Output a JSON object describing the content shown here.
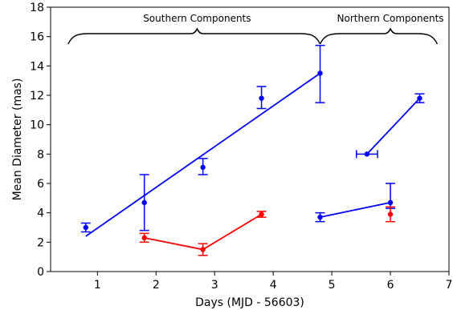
{
  "chart_data": {
    "type": "scatter",
    "xlabel": "Days (MJD - 56603)",
    "ylabel": "Mean Diameter (mas)",
    "xlim": [
      0.2,
      7.0
    ],
    "ylim": [
      0,
      18
    ],
    "xticks": [
      1,
      2,
      3,
      4,
      5,
      6,
      7
    ],
    "yticks": [
      0,
      2,
      4,
      6,
      8,
      10,
      12,
      14,
      16,
      18
    ],
    "grid": false,
    "colors": {
      "blue": "#0000ff",
      "red": "#ff0000",
      "annotation": "#000000"
    },
    "annotations": [
      {
        "label": "Southern Components",
        "x_start": 0.5,
        "x_end": 4.8,
        "peak_x": 2.7,
        "y": 16.2
      },
      {
        "label": "Northern Components",
        "x_start": 4.8,
        "x_end": 6.8,
        "peak_x": 6.0,
        "y": 16.2
      }
    ],
    "series": [
      {
        "color": "#0000ff",
        "points": [
          {
            "x": 0.8,
            "y": 3.0,
            "yerr": [
              0.3,
              0.3
            ]
          },
          {
            "x": 1.8,
            "y": 4.7,
            "yerr": [
              1.9,
              1.9
            ]
          },
          {
            "x": 2.8,
            "y": 7.1,
            "yerr": [
              0.5,
              0.6
            ]
          },
          {
            "x": 3.8,
            "y": 11.8,
            "yerr": [
              0.7,
              0.8
            ]
          },
          {
            "x": 4.8,
            "y": 13.5,
            "yerr": [
              2.0,
              1.9
            ]
          },
          {
            "x": 4.8,
            "y": 3.7,
            "yerr": [
              0.3,
              0.3
            ]
          },
          {
            "x": 6.0,
            "y": 4.7,
            "yerr": [
              0.4,
              1.3
            ]
          },
          {
            "x": 5.6,
            "y": 8.0,
            "xerr": [
              0.18,
              0.18
            ]
          },
          {
            "x": 6.5,
            "y": 11.8,
            "yerr": [
              0.3,
              0.3
            ]
          }
        ],
        "fit_lines": [
          [
            [
              0.8,
              2.4
            ],
            [
              4.8,
              13.5
            ]
          ],
          [
            [
              4.8,
              3.7
            ],
            [
              6.0,
              4.7
            ]
          ],
          [
            [
              5.6,
              8.0
            ],
            [
              6.5,
              11.8
            ]
          ]
        ]
      },
      {
        "color": "#ff0000",
        "points": [
          {
            "x": 1.8,
            "y": 2.3,
            "yerr": [
              0.3,
              0.3
            ]
          },
          {
            "x": 2.8,
            "y": 1.5,
            "yerr": [
              0.4,
              0.4
            ]
          },
          {
            "x": 3.8,
            "y": 3.9,
            "yerr": [
              0.2,
              0.2
            ]
          },
          {
            "x": 6.0,
            "y": 3.9,
            "yerr": [
              0.5,
              0.5
            ]
          }
        ],
        "fit_lines": [
          [
            [
              1.8,
              2.3
            ],
            [
              2.8,
              1.5
            ],
            [
              3.8,
              3.9
            ]
          ]
        ]
      }
    ]
  }
}
